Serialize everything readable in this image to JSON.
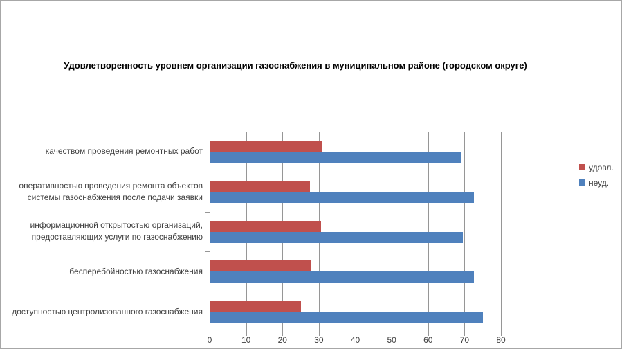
{
  "chart_data": {
    "type": "bar",
    "orientation": "horizontal",
    "title": "Удовлетворенность уровнем организации газоснабжения в муниципальном районе (городском округе)",
    "categories": [
      "качеством проведения ремонтных работ",
      "оперативностью проведения ремонта объектов системы газоснабжения после подачи заявки",
      "информационной открытостью организаций, предоставляющих услуги по газоснабжению",
      "бесперебойностью газоснабжения",
      "доступностью центролизованного газоснабжения"
    ],
    "series": [
      {
        "name": "удовл.",
        "color": "#C0504D",
        "values": [
          31,
          27.5,
          30.5,
          28,
          25
        ]
      },
      {
        "name": "неуд.",
        "color": "#4F81BD",
        "values": [
          69,
          72.5,
          69.5,
          72.5,
          75
        ]
      }
    ],
    "xlim": [
      0,
      80
    ],
    "xticks": [
      0,
      10,
      20,
      30,
      40,
      50,
      60,
      70,
      80
    ],
    "grid": true,
    "legend_position": "right",
    "grid_color": "#969696",
    "text_color": "#404040",
    "title_color": "#000000",
    "background_color": "#FFFFFF"
  }
}
